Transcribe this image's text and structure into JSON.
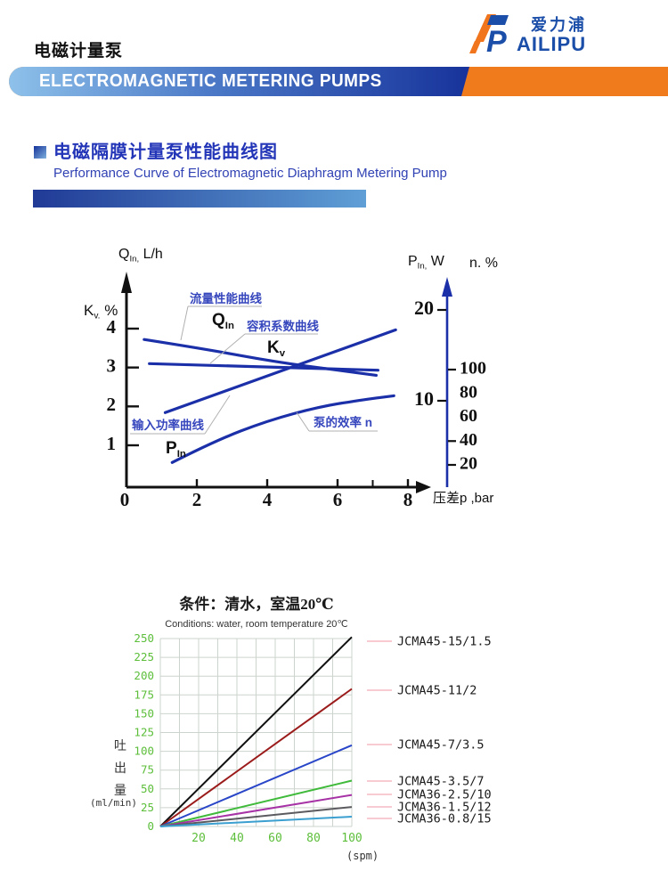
{
  "header": {
    "product_title": "电磁计量泵",
    "banner_title": "ELECTROMAGNETIC METERING PUMPS",
    "logo": {
      "cn": "爱力浦",
      "en": "AILIPU"
    },
    "colors": {
      "banner_blue": "#17339b",
      "banner_orange": "#ef7b1d",
      "logo_blue": "#1b4ea8",
      "logo_orange": "#f0751c"
    }
  },
  "section": {
    "title_cn": "电磁隔膜计量泵性能曲线图",
    "title_en": "Performance Curve of Electromagnetic Diaphragm Metering Pump",
    "accent": "#203a96"
  },
  "chart_data": [
    {
      "type": "line",
      "id": "performance-curves",
      "curve_color": "#1b2fa8",
      "annotation_color": "#3747bd",
      "x_axis": {
        "label": "压差p ,bar",
        "ticks": [
          0,
          2,
          4,
          6,
          8
        ],
        "minor_ticks": [
          7
        ],
        "range": [
          0,
          8.6
        ]
      },
      "left_axis": {
        "top_label": {
          "main": "Q",
          "sub": "In,",
          "rest": " L/h"
        },
        "side_label": {
          "main": "K",
          "sub": "v.",
          "rest": " %"
        },
        "ticks": [
          1,
          2,
          3,
          4
        ]
      },
      "right_axis": {
        "p_label": {
          "main": "P",
          "sub": "In,",
          "rest": " W"
        },
        "n_label": {
          "main": "n. %"
        },
        "p_ticks": [
          10,
          20
        ],
        "n_ticks": [
          20,
          40,
          60,
          80,
          100
        ],
        "n_ticks_with_dash": [
          20,
          40,
          100
        ]
      },
      "series": [
        {
          "name": "Q_In",
          "label_cn": "流量性能曲线",
          "symbol": {
            "main": "Q",
            "sub": "In"
          },
          "scale": "left",
          "points": [
            [
              0.5,
              3.72
            ],
            [
              2.2,
              3.48
            ],
            [
              4.2,
              3.15
            ],
            [
              6.0,
              2.93
            ],
            [
              7.1,
              2.8
            ]
          ]
        },
        {
          "name": "K_v",
          "label_cn": "容积系数曲线",
          "symbol": {
            "main": "K",
            "sub": "v"
          },
          "scale": "left",
          "points": [
            [
              0.65,
              3.1
            ],
            [
              3.8,
              3.02
            ],
            [
              7.15,
              2.93
            ]
          ]
        },
        {
          "name": "P_In",
          "label_cn": "输入功率曲线",
          "symbol": {
            "main": "P",
            "sub": "In"
          },
          "scale": "p",
          "points": [
            [
              1.1,
              8.7
            ],
            [
              7.65,
              17.8
            ]
          ]
        },
        {
          "name": "n",
          "label_cn": "泵的效率 n",
          "symbol": null,
          "scale": "n",
          "points": [
            [
              1.3,
              22
            ],
            [
              2.5,
              40
            ],
            [
              4.0,
              57
            ],
            [
              5.5,
              69
            ],
            [
              6.8,
              75
            ],
            [
              7.6,
              78
            ]
          ]
        }
      ]
    },
    {
      "type": "line",
      "id": "flow-vs-spm",
      "title_cn": "条件：清水，室温20℃",
      "title_en": "Conditions: water, room temperature 20℃",
      "ylabel_cn": "吐出量",
      "ylabel_unit": "(ml/min)",
      "xlabel_unit": "(spm)",
      "x_ticks": [
        20,
        40,
        60,
        80,
        100
      ],
      "y_ticks": [
        0,
        25,
        50,
        75,
        100,
        125,
        150,
        175,
        200,
        225,
        250
      ],
      "x_range": [
        0,
        100
      ],
      "y_range": [
        0,
        250
      ],
      "grid": true,
      "tick_color": "#5cbe3a",
      "legend_line_color": "#f5b8c4",
      "series": [
        {
          "name": "JCMA45-15/1.5",
          "color": "#111111",
          "points": [
            [
              0,
              0
            ],
            [
              100,
              252
            ]
          ]
        },
        {
          "name": "JCMA45-11/2",
          "color": "#9b1b1b",
          "points": [
            [
              0,
              0
            ],
            [
              100,
              183
            ]
          ]
        },
        {
          "name": "JCMA45-7/3.5",
          "color": "#2946c8",
          "points": [
            [
              0,
              0
            ],
            [
              100,
              108
            ]
          ]
        },
        {
          "name": "JCMA45-3.5/7",
          "color": "#3fba3a",
          "points": [
            [
              0,
              0
            ],
            [
              100,
              61
            ]
          ]
        },
        {
          "name": "JCMA36-2.5/10",
          "color": "#a632a6",
          "points": [
            [
              0,
              0
            ],
            [
              100,
              42
            ]
          ]
        },
        {
          "name": "JCMA36-1.5/12",
          "color": "#5a5a5f",
          "points": [
            [
              0,
              0
            ],
            [
              100,
              26
            ]
          ]
        },
        {
          "name": "JCMA36-0.8/15",
          "color": "#3b9fd0",
          "points": [
            [
              0,
              0
            ],
            [
              100,
              13
            ]
          ]
        }
      ]
    }
  ]
}
